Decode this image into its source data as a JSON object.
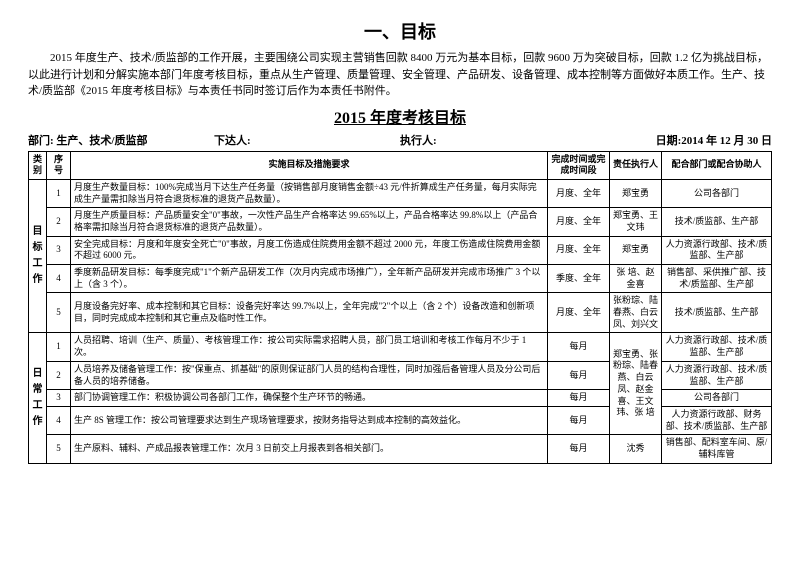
{
  "mainTitle": "一、目标",
  "intro": "2015 年度生产、技术/质监部的工作开展，主要围绕公司实现主营销售回款 8400 万元为基本目标，回款 9600 万为突破目标，回款 1.2 亿为挑战目标，以此进行计划和分解实施本部门年度考核目标，重点从生产管理、质量管理、安全管理、产品研发、设备管理、成本控制等方面做好本质工作。生产、技术/质监部《2015 年度考核目标》与本责任书同时签订后作为本责任书附件。",
  "subTitle": "2015 年度考核目标",
  "meta": {
    "deptLabel": "部门: 生产、技术/质监部",
    "issuer": "下达人:",
    "executor": "执行人:",
    "date": "日期:2014 年 12 月 30 日"
  },
  "headers": {
    "category": "类别",
    "seq": "序号",
    "desc": "实施目标及措施要求",
    "time": "完成时间或完成时间段",
    "resp": "责任执行人",
    "coop": "配合部门或配合协助人"
  },
  "cat1": "目标工作",
  "cat2": "日常工作",
  "rows1": [
    {
      "seq": "1",
      "desc": "月度生产数量目标：100%完成当月下达生产任务量（按销售部月度销售金额÷43 元/件折算成生产任务量，每月实际完成生产量需扣除当月符合退货标准的退货产品数量）。",
      "time": "月度、全年",
      "resp": "郑宝勇",
      "coop": "公司各部门"
    },
    {
      "seq": "2",
      "desc": "月度生产质量目标：产品质量安全\"0\"事故，一次性产品生产合格率达 99.65%以上，产品合格率达 99.8%以上（产品合格率需扣除当月符合退货标准的退货产品数量）。",
      "time": "月度、全年",
      "resp": "郑宝勇、王文玮",
      "coop": "技术/质监部、生产部"
    },
    {
      "seq": "3",
      "desc": "安全完成目标：月度和年度安全死亡\"0\"事故，月度工伤造成住院费用金额不超过 2000 元，年度工伤造成住院费用金额不超过 6000 元。",
      "time": "月度、全年",
      "resp": "郑宝勇",
      "coop": "人力资源行政部、技术/质监部、生产部"
    },
    {
      "seq": "4",
      "desc": "季度新品研发目标：每季度完成\"1\"个新产品研发工作（次月内完成市场推广），全年新产品研发并完成市场推广 3 个以上（含 3 个）。",
      "time": "季度、全年",
      "resp": "张 培、赵金喜",
      "coop": "销售部、采供推广部、技术/质监部、生产部"
    },
    {
      "seq": "5",
      "desc": "月度设备完好率、成本控制和其它目标：设备完好率达 99.7%以上，全年完成\"2\"个以上（含 2 个）设备改造和创新项目，同时完成成本控制和其它重点及临时性工作。",
      "time": "月度、全年",
      "resp": "张粉琮、陆春燕、白云凤、刘兴文",
      "coop": "技术/质监部、生产部"
    }
  ],
  "rows2": [
    {
      "seq": "1",
      "desc": "人员招聘、培训（生产、质量）、考核管理工作：按公司实际需求招聘人员，部门员工培训和考核工作每月不少于 1 次。",
      "time": "每月",
      "resp": "郑宝勇、张粉琮、陆春燕、白云凤、赵金喜、王文玮、张 培",
      "coop": "人力资源行政部、技术/质监部、生产部"
    },
    {
      "seq": "2",
      "desc": "人员培养及储备管理工作：按\"保重点、抓基础\"的原则保证部门人员的结构合理性，同时加强后备管理人员及分公司后备人员的培养储备。",
      "time": "每月",
      "coop": "人力资源行政部、技术/质监部、生产部"
    },
    {
      "seq": "3",
      "desc": "部门协调管理工作：积极协调公司各部门工作，确保整个生产环节的畅通。",
      "time": "每月",
      "coop": "公司各部门"
    },
    {
      "seq": "4",
      "desc": "生产 8S 管理工作：按公司管理要求达到生产现场管理要求，按财务指导达到成本控制的高效益化。",
      "time": "每月",
      "coop": "人力资源行政部、财务部、技术/质监部、生产部"
    },
    {
      "seq": "5",
      "desc": "生产原料、辅料、产成品报表管理工作：次月 3 日前交上月报表到各相关部门。",
      "time": "每月",
      "resp": "沈秀",
      "coop": "销售部、配料室车间、原/辅料库管"
    }
  ]
}
